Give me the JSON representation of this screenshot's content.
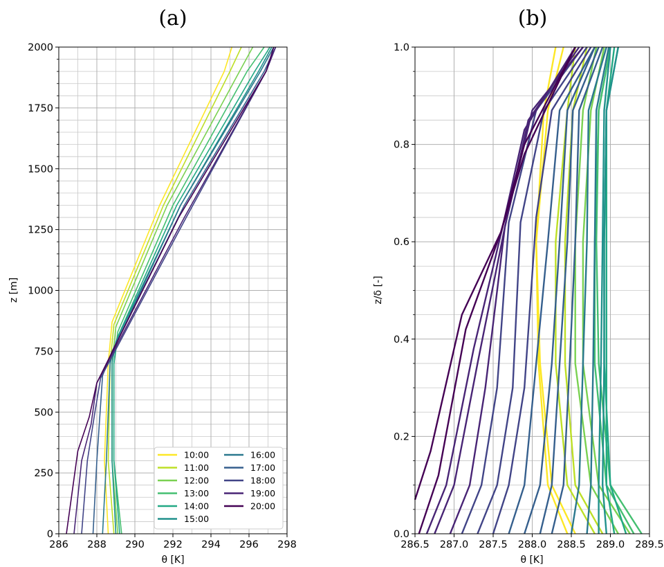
{
  "chart_data": [
    {
      "type": "line",
      "panel_title": "(a)",
      "xlabel": "θ [K]",
      "ylabel": "z [m]",
      "xlim": [
        286,
        298
      ],
      "ylim": [
        0,
        2000
      ],
      "xticks": [
        286,
        288,
        290,
        292,
        294,
        296,
        298
      ],
      "xtick_labels": [
        "286",
        "288",
        "290",
        "292",
        "294",
        "296",
        "298"
      ],
      "yticks": [
        0,
        250,
        500,
        750,
        1000,
        1250,
        1500,
        1750,
        2000
      ],
      "ytick_labels": [
        "0",
        "250",
        "500",
        "750",
        "1000",
        "1250",
        "1500",
        "1750",
        "2000"
      ],
      "grid": true,
      "legend_position": "lower-right",
      "legend_entries": [
        "10:00",
        "11:00",
        "12:00",
        "13:00",
        "14:00",
        "15:00",
        "16:00",
        "17:00",
        "18:00",
        "19:00",
        "20:00"
      ],
      "series": [
        {
          "name": "10:00",
          "color": "#fde725",
          "x": [
            288.6,
            288.4,
            288.6,
            288.8,
            291.3,
            294.7,
            295.1
          ],
          "y": [
            0,
            300,
            700,
            870,
            1350,
            1900,
            2000
          ]
        },
        {
          "name": "11:00",
          "color": "#bddf26",
          "x": [
            288.9,
            288.6,
            288.7,
            288.9,
            291.5,
            295.0,
            295.6
          ],
          "y": [
            0,
            300,
            700,
            860,
            1350,
            1900,
            2000
          ]
        },
        {
          "name": "12:00",
          "color": "#7ad151",
          "x": [
            289.1,
            288.8,
            288.8,
            289.0,
            291.7,
            295.5,
            296.2
          ],
          "y": [
            0,
            300,
            700,
            850,
            1350,
            1900,
            2000
          ]
        },
        {
          "name": "13:00",
          "color": "#44bf70",
          "x": [
            289.3,
            288.9,
            288.9,
            289.1,
            292.0,
            295.9,
            296.8
          ],
          "y": [
            0,
            300,
            700,
            830,
            1350,
            1900,
            2000
          ]
        },
        {
          "name": "14:00",
          "color": "#22a884",
          "x": [
            289.2,
            288.9,
            288.9,
            289.1,
            292.2,
            296.3,
            297.1
          ],
          "y": [
            0,
            300,
            700,
            810,
            1350,
            1900,
            2000
          ]
        },
        {
          "name": "15:00",
          "color": "#21918c",
          "x": [
            289.0,
            288.8,
            288.8,
            289.0,
            292.4,
            296.5,
            297.2
          ],
          "y": [
            0,
            300,
            700,
            790,
            1350,
            1900,
            2000
          ]
        },
        {
          "name": "16:00",
          "color": "#2a788e",
          "x": [
            288.3,
            288.5,
            288.7,
            288.9,
            292.4,
            296.6,
            297.3
          ],
          "y": [
            0,
            300,
            700,
            760,
            1350,
            1900,
            2000
          ]
        },
        {
          "name": "17:00",
          "color": "#355f8d",
          "x": [
            287.8,
            288.0,
            288.3,
            288.8,
            292.6,
            296.8,
            297.4
          ],
          "y": [
            0,
            300,
            650,
            750,
            1350,
            1900,
            2000
          ]
        },
        {
          "name": "18:00",
          "color": "#414487",
          "x": [
            287.2,
            287.5,
            287.9,
            288.2,
            292.7,
            296.9,
            297.4
          ],
          "y": [
            0,
            300,
            500,
            640,
            1300,
            1900,
            2000
          ]
        },
        {
          "name": "19:00",
          "color": "#482475",
          "x": [
            286.8,
            287.2,
            287.7,
            288.0,
            292.6,
            296.9,
            297.4
          ],
          "y": [
            0,
            300,
            450,
            620,
            1300,
            1900,
            2000
          ]
        },
        {
          "name": "20:00",
          "color": "#440154",
          "x": [
            286.4,
            287.0,
            287.6,
            288.0,
            292.3,
            296.9,
            297.3
          ],
          "y": [
            0,
            340,
            480,
            620,
            1300,
            1900,
            2000
          ]
        }
      ]
    },
    {
      "type": "line",
      "panel_title": "(b)",
      "xlabel": "θ [K]",
      "ylabel": "z/δ [-]",
      "xlim": [
        286.5,
        289.5
      ],
      "ylim": [
        0.0,
        1.0
      ],
      "xticks": [
        286.5,
        287.0,
        287.5,
        288.0,
        288.5,
        289.0,
        289.5
      ],
      "xtick_labels": [
        "286.5",
        "287.0",
        "287.5",
        "288.0",
        "288.5",
        "289.0",
        "289.5"
      ],
      "yticks": [
        0.0,
        0.2,
        0.4,
        0.6,
        0.8,
        1.0
      ],
      "ytick_labels": [
        "0.0",
        "0.2",
        "0.4",
        "0.6",
        "0.8",
        "1.0"
      ],
      "grid": true,
      "series": [
        {
          "name": "10:00",
          "color": "#fde725",
          "x": [
            288.55,
            288.25,
            288.1,
            288.05,
            288.15,
            288.3
          ],
          "y": [
            0.0,
            0.1,
            0.35,
            0.6,
            0.87,
            1.0
          ]
        },
        {
          "name": "10:00",
          "color": "#fde725",
          "x": [
            288.45,
            288.2,
            288.08,
            288.05,
            288.2,
            288.4
          ],
          "y": [
            0.0,
            0.1,
            0.35,
            0.6,
            0.87,
            1.0
          ]
        },
        {
          "name": "11:00",
          "color": "#bddf26",
          "x": [
            288.8,
            288.45,
            288.3,
            288.3,
            288.45,
            288.55
          ],
          "y": [
            0.0,
            0.1,
            0.35,
            0.6,
            0.87,
            1.0
          ]
        },
        {
          "name": "11:00",
          "color": "#bddf26",
          "x": [
            288.9,
            288.55,
            288.42,
            288.42,
            288.52,
            288.7
          ],
          "y": [
            0.0,
            0.1,
            0.35,
            0.6,
            0.87,
            1.0
          ]
        },
        {
          "name": "12:00",
          "color": "#7ad151",
          "x": [
            289.1,
            288.75,
            288.55,
            288.55,
            288.65,
            288.82
          ],
          "y": [
            0.0,
            0.1,
            0.35,
            0.6,
            0.87,
            1.0
          ]
        },
        {
          "name": "12:00",
          "color": "#7ad151",
          "x": [
            289.25,
            288.85,
            288.65,
            288.65,
            288.75,
            288.92
          ],
          "y": [
            0.0,
            0.1,
            0.35,
            0.6,
            0.87,
            1.0
          ]
        },
        {
          "name": "13:00",
          "color": "#44bf70",
          "x": [
            289.4,
            289.0,
            288.85,
            288.82,
            288.85,
            289.0
          ],
          "y": [
            0.0,
            0.1,
            0.35,
            0.6,
            0.87,
            1.0
          ]
        },
        {
          "name": "13:00",
          "color": "#44bf70",
          "x": [
            289.3,
            288.95,
            288.8,
            288.8,
            288.85,
            289.0
          ],
          "y": [
            0.0,
            0.1,
            0.35,
            0.6,
            0.87,
            1.0
          ]
        },
        {
          "name": "14:00",
          "color": "#22a884",
          "x": [
            289.2,
            289.0,
            288.92,
            288.92,
            288.95,
            289.05
          ],
          "y": [
            0.0,
            0.1,
            0.35,
            0.6,
            0.87,
            1.0
          ]
        },
        {
          "name": "14:00",
          "color": "#22a884",
          "x": [
            289.05,
            288.95,
            288.95,
            288.95,
            288.95,
            289.1
          ],
          "y": [
            0.0,
            0.1,
            0.35,
            0.6,
            0.87,
            1.0
          ]
        },
        {
          "name": "15:00",
          "color": "#21918c",
          "x": [
            288.95,
            288.9,
            288.92,
            288.92,
            288.95,
            289.1
          ],
          "y": [
            0.0,
            0.1,
            0.35,
            0.6,
            0.87,
            1.0
          ]
        },
        {
          "name": "15:00",
          "color": "#21918c",
          "x": [
            288.85,
            288.85,
            288.88,
            288.9,
            288.92,
            289.0
          ],
          "y": [
            0.0,
            0.1,
            0.35,
            0.6,
            0.87,
            1.0
          ]
        },
        {
          "name": "16:00",
          "color": "#2a788e",
          "x": [
            288.7,
            288.75,
            288.78,
            288.8,
            288.82,
            288.98
          ],
          "y": [
            0.0,
            0.1,
            0.35,
            0.6,
            0.87,
            1.0
          ]
        },
        {
          "name": "16:00",
          "color": "#2a788e",
          "x": [
            288.5,
            288.6,
            288.65,
            288.7,
            288.72,
            288.95
          ],
          "y": [
            0.0,
            0.1,
            0.35,
            0.6,
            0.87,
            1.0
          ]
        },
        {
          "name": "17:00",
          "color": "#355f8d",
          "x": [
            288.25,
            288.4,
            288.48,
            288.55,
            288.6,
            288.9
          ],
          "y": [
            0.0,
            0.1,
            0.35,
            0.6,
            0.87,
            1.0
          ]
        },
        {
          "name": "17:00",
          "color": "#355f8d",
          "x": [
            288.1,
            288.25,
            288.35,
            288.45,
            288.52,
            288.85
          ],
          "y": [
            0.0,
            0.1,
            0.35,
            0.6,
            0.87,
            1.0
          ]
        },
        {
          "name": "17:00",
          "color": "#355f8d",
          "x": [
            287.9,
            288.1,
            288.25,
            288.35,
            288.45,
            288.8
          ],
          "y": [
            0.0,
            0.1,
            0.35,
            0.6,
            0.87,
            1.0
          ]
        },
        {
          "name": "17:00",
          "color": "#355f8d",
          "x": [
            287.7,
            287.9,
            288.05,
            288.2,
            288.35,
            288.8
          ],
          "y": [
            0.0,
            0.1,
            0.35,
            0.6,
            0.87,
            1.0
          ]
        },
        {
          "name": "18:00",
          "color": "#414487",
          "x": [
            287.5,
            287.7,
            287.9,
            288.05,
            288.25,
            288.75
          ],
          "y": [
            0.0,
            0.1,
            0.3,
            0.65,
            0.87,
            1.0
          ]
        },
        {
          "name": "18:00",
          "color": "#414487",
          "x": [
            287.3,
            287.55,
            287.75,
            287.85,
            288.15,
            288.7
          ],
          "y": [
            0.0,
            0.1,
            0.3,
            0.64,
            0.87,
            1.0
          ]
        },
        {
          "name": "18:00",
          "color": "#414487",
          "x": [
            287.1,
            287.35,
            287.55,
            287.7,
            288.05,
            288.65
          ],
          "y": [
            0.0,
            0.1,
            0.3,
            0.64,
            0.87,
            1.0
          ]
        },
        {
          "name": "19:00",
          "color": "#482475",
          "x": [
            286.95,
            287.2,
            287.4,
            287.65,
            288.0,
            288.65
          ],
          "y": [
            0.0,
            0.1,
            0.3,
            0.63,
            0.87,
            1.0
          ]
        },
        {
          "name": "19:00",
          "color": "#482475",
          "x": [
            286.75,
            287.0,
            287.3,
            287.65,
            287.95,
            288.6
          ],
          "y": [
            0.0,
            0.1,
            0.35,
            0.63,
            0.85,
            1.0
          ]
        },
        {
          "name": "19:00",
          "color": "#482475",
          "x": [
            286.65,
            286.9,
            287.25,
            287.62,
            287.9,
            288.55
          ],
          "y": [
            0.0,
            0.1,
            0.38,
            0.63,
            0.83,
            1.0
          ]
        },
        {
          "name": "20:00",
          "color": "#440154",
          "x": [
            286.55,
            286.8,
            287.15,
            287.6,
            287.9,
            288.55
          ],
          "y": [
            0.0,
            0.12,
            0.42,
            0.62,
            0.8,
            1.0
          ]
        },
        {
          "name": "20:00",
          "color": "#440154",
          "x": [
            286.5,
            286.7,
            287.1,
            287.6,
            287.9,
            288.55
          ],
          "y": [
            0.07,
            0.17,
            0.45,
            0.62,
            0.78,
            1.0
          ]
        }
      ]
    }
  ]
}
